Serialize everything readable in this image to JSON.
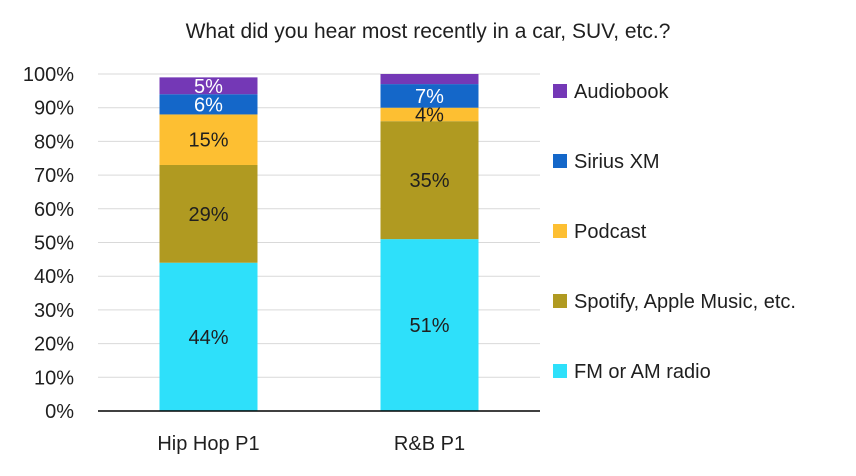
{
  "chart_data": {
    "type": "bar",
    "stacked": true,
    "percent": true,
    "title": "What did you hear most recently in a car, SUV, etc.?",
    "xlabel": "",
    "ylabel": "",
    "ylim": [
      0,
      100
    ],
    "y_ticks": [
      "0%",
      "10%",
      "20%",
      "30%",
      "40%",
      "50%",
      "60%",
      "70%",
      "80%",
      "90%",
      "100%"
    ],
    "grid": true,
    "legend_position": "right",
    "categories": [
      "Hip Hop P1",
      "R&B P1"
    ],
    "series": [
      {
        "name": "FM or AM radio",
        "color": "#2EE0FA",
        "values": [
          44,
          51
        ],
        "labels": [
          "44%",
          "51%"
        ],
        "label_color": "#1f1f1f"
      },
      {
        "name": "Spotify, Apple Music, etc.",
        "color": "#B09A21",
        "values": [
          29,
          35
        ],
        "labels": [
          "29%",
          "35%"
        ],
        "label_color": "#1f1f1f"
      },
      {
        "name": "Podcast",
        "color": "#FDBF32",
        "values": [
          15,
          4
        ],
        "labels": [
          "15%",
          "4%"
        ],
        "label_color": "#1f1f1f"
      },
      {
        "name": "Sirius XM",
        "color": "#1467C9",
        "values": [
          6,
          7
        ],
        "labels": [
          "6%",
          "7%"
        ],
        "label_color": "#ffffff"
      },
      {
        "name": "Audiobook",
        "color": "#7438B6",
        "values": [
          5,
          3
        ],
        "labels": [
          "5%",
          ""
        ],
        "label_color": "#ffffff"
      }
    ]
  }
}
